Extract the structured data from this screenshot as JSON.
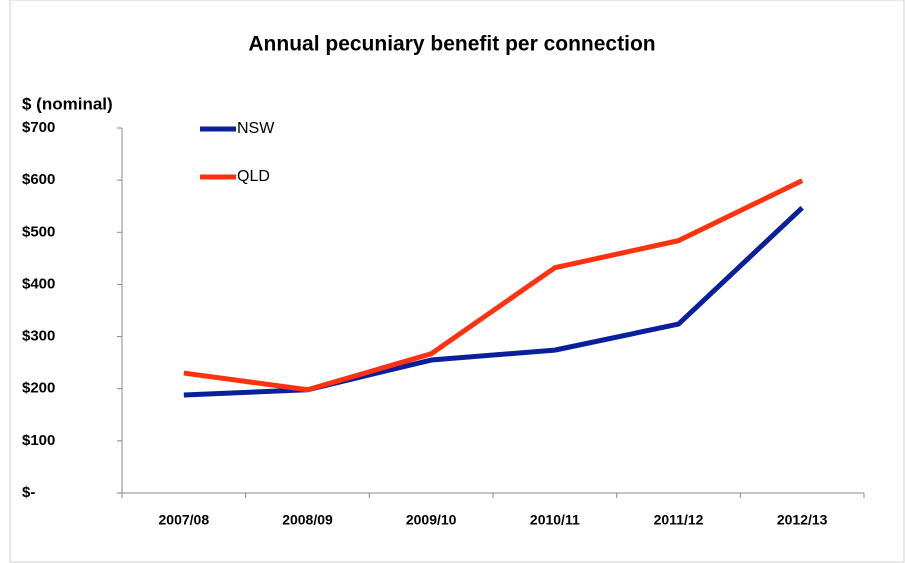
{
  "chart_data": {
    "type": "line",
    "title": "Annual pecuniary benefit per connection",
    "y_label": "$ (nominal)",
    "categories": [
      "2007/08",
      "2008/09",
      "2009/10",
      "2010/11",
      "2011/12",
      "2012/13"
    ],
    "series": [
      {
        "name": "NSW",
        "color": "#0a1f9c",
        "values": [
          188,
          198,
          255,
          274,
          324,
          547
        ]
      },
      {
        "name": "QLD",
        "color": "#ff3210",
        "values": [
          230,
          198,
          267,
          432,
          484,
          599
        ]
      }
    ],
    "ylim": [
      0,
      700
    ],
    "yticks": [
      {
        "value": 0,
        "label": "$-"
      },
      {
        "value": 100,
        "label": "$100"
      },
      {
        "value": 200,
        "label": "$200"
      },
      {
        "value": 300,
        "label": "$300"
      },
      {
        "value": 400,
        "label": "$400"
      },
      {
        "value": 500,
        "label": "$500"
      },
      {
        "value": 600,
        "label": "$600"
      },
      {
        "value": 700,
        "label": "$700"
      }
    ],
    "grid": false,
    "legend": "top-left"
  }
}
